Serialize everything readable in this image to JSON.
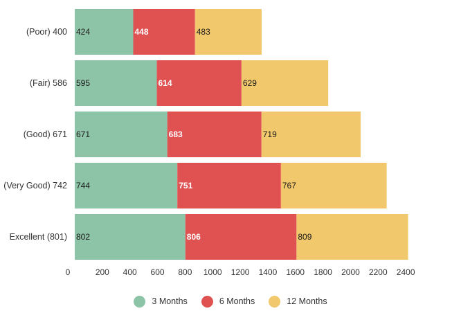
{
  "chart_data": {
    "type": "bar",
    "orientation": "horizontal",
    "stacked": true,
    "categories": [
      "(Poor) 400",
      "(Fair) 586",
      "(Good) 671",
      "(Very Good) 742",
      "Excellent (801)"
    ],
    "series": [
      {
        "name": "3 Months",
        "color": "#8dc3a7",
        "label_color": "#1a1a1a",
        "values": [
          424,
          595,
          671,
          744,
          802
        ]
      },
      {
        "name": "6 Months",
        "color": "#e05252",
        "label_color": "#ffffff",
        "values": [
          448,
          614,
          683,
          751,
          806
        ]
      },
      {
        "name": "12 Months",
        "color": "#f2c86c",
        "label_color": "#1a1a1a",
        "values": [
          483,
          629,
          719,
          767,
          809
        ]
      }
    ],
    "xlim": [
      0,
      2600
    ],
    "xticks": [
      0,
      200,
      400,
      600,
      800,
      1000,
      1200,
      1400,
      1600,
      1800,
      2000,
      2200,
      2400
    ],
    "grid": false,
    "legend_position": "bottom-center",
    "title": "",
    "xlabel": "",
    "ylabel": ""
  }
}
